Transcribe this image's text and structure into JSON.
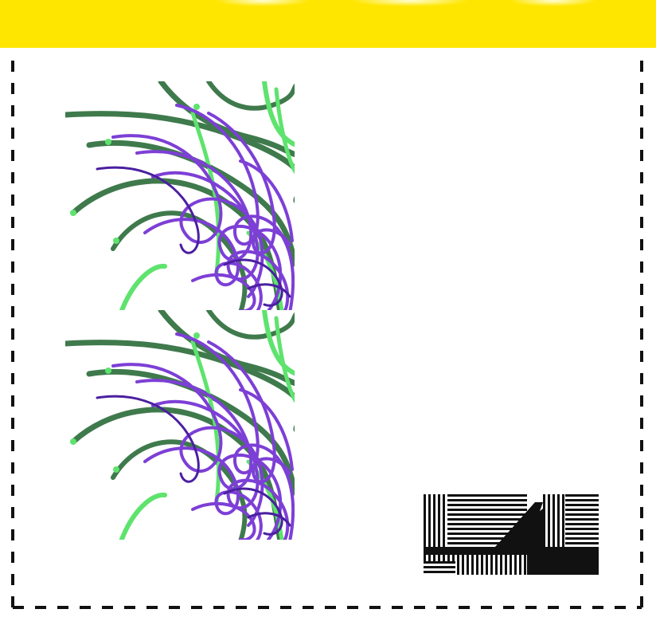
{
  "banner": {
    "color": "#FFE600"
  },
  "frame": {
    "border_color": "#111111",
    "style": "dashed"
  },
  "art_panels": [
    {
      "name": "tendril-artwork-top",
      "colors": {
        "green_dark": "#3f7a4c",
        "green_light": "#5ee36e",
        "purple": "#7d3fd6",
        "purple_dark": "#4a1fa0"
      }
    },
    {
      "name": "tendril-artwork-bottom",
      "colors": {
        "green_dark": "#3f7a4c",
        "green_light": "#5ee36e",
        "purple": "#7d3fd6",
        "purple_dark": "#4a1fa0"
      }
    }
  ],
  "stripe_tile": {
    "colors": {
      "dark": "#111111",
      "light": "#ffffff"
    }
  }
}
